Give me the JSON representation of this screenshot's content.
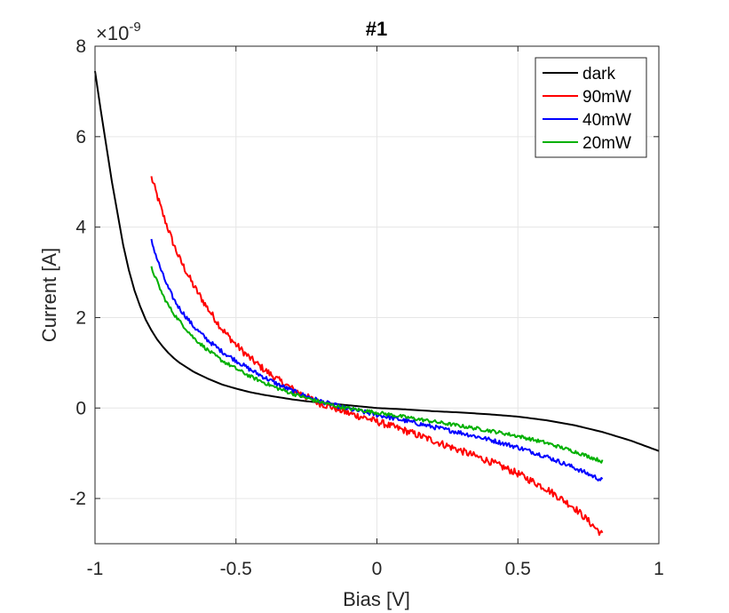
{
  "chart_data": {
    "type": "line",
    "title": "#1",
    "xlabel": "Bias [V]",
    "ylabel": "Current [A]",
    "y_exponent_label": {
      "base": "×10",
      "exponent": "-9"
    },
    "xlim": [
      -1,
      1
    ],
    "ylim": [
      -3,
      8
    ],
    "xticks": [
      -1,
      -0.5,
      0,
      0.5,
      1
    ],
    "xtick_labels": [
      "-1",
      "-0.5",
      "0",
      "0.5",
      "1"
    ],
    "yticks": [
      -2,
      0,
      2,
      4,
      6,
      8
    ],
    "ytick_labels": [
      "-2",
      "0",
      "2",
      "4",
      "6",
      "8"
    ],
    "grid": true,
    "legend_position": "top-right",
    "y_unit_scale": 1e-09,
    "series": [
      {
        "name": "dark",
        "color": "#000000",
        "noise": 0,
        "x": [
          -1.0,
          -0.98,
          -0.96,
          -0.94,
          -0.92,
          -0.9,
          -0.88,
          -0.86,
          -0.84,
          -0.82,
          -0.8,
          -0.78,
          -0.76,
          -0.74,
          -0.72,
          -0.7,
          -0.65,
          -0.6,
          -0.55,
          -0.5,
          -0.45,
          -0.4,
          -0.35,
          -0.3,
          -0.25,
          -0.2,
          -0.1,
          0.0,
          0.1,
          0.2,
          0.3,
          0.4,
          0.5,
          0.6,
          0.7,
          0.8,
          0.9,
          1.0
        ],
        "y": [
          7.45,
          6.6,
          5.8,
          5.0,
          4.3,
          3.6,
          3.05,
          2.6,
          2.25,
          1.95,
          1.72,
          1.52,
          1.36,
          1.22,
          1.1,
          1.0,
          0.8,
          0.65,
          0.52,
          0.43,
          0.35,
          0.29,
          0.24,
          0.19,
          0.15,
          0.12,
          0.06,
          0.0,
          -0.03,
          -0.07,
          -0.1,
          -0.14,
          -0.19,
          -0.27,
          -0.38,
          -0.53,
          -0.72,
          -0.95
        ]
      },
      {
        "name": "90mW",
        "color": "#ff0000",
        "noise": 0.08,
        "x": [
          -0.8,
          -0.78,
          -0.76,
          -0.74,
          -0.72,
          -0.7,
          -0.65,
          -0.6,
          -0.55,
          -0.5,
          -0.45,
          -0.4,
          -0.35,
          -0.3,
          -0.25,
          -0.2,
          -0.15,
          -0.1,
          -0.05,
          0.0,
          0.1,
          0.2,
          0.3,
          0.4,
          0.5,
          0.6,
          0.7,
          0.75,
          0.8
        ],
        "y": [
          5.1,
          4.7,
          4.3,
          3.95,
          3.6,
          3.3,
          2.7,
          2.2,
          1.75,
          1.4,
          1.1,
          0.85,
          0.62,
          0.42,
          0.25,
          0.1,
          0.0,
          -0.12,
          -0.2,
          -0.3,
          -0.5,
          -0.72,
          -0.95,
          -1.18,
          -1.45,
          -1.78,
          -2.2,
          -2.5,
          -2.8
        ]
      },
      {
        "name": "40mW",
        "color": "#0000ff",
        "noise": 0.05,
        "x": [
          -0.8,
          -0.78,
          -0.76,
          -0.74,
          -0.72,
          -0.7,
          -0.65,
          -0.6,
          -0.55,
          -0.5,
          -0.45,
          -0.4,
          -0.35,
          -0.3,
          -0.25,
          -0.2,
          -0.15,
          -0.1,
          0.0,
          0.1,
          0.2,
          0.3,
          0.4,
          0.5,
          0.6,
          0.7,
          0.8
        ],
        "y": [
          3.7,
          3.3,
          2.95,
          2.65,
          2.4,
          2.2,
          1.8,
          1.5,
          1.25,
          1.05,
          0.85,
          0.68,
          0.52,
          0.38,
          0.26,
          0.15,
          0.06,
          -0.02,
          -0.15,
          -0.28,
          -0.42,
          -0.55,
          -0.7,
          -0.87,
          -1.07,
          -1.32,
          -1.6
        ]
      },
      {
        "name": "20mW",
        "color": "#00b000",
        "noise": 0.04,
        "x": [
          -0.8,
          -0.78,
          -0.76,
          -0.74,
          -0.72,
          -0.7,
          -0.65,
          -0.6,
          -0.55,
          -0.5,
          -0.45,
          -0.4,
          -0.35,
          -0.3,
          -0.25,
          -0.2,
          -0.15,
          -0.1,
          0.0,
          0.1,
          0.2,
          0.3,
          0.4,
          0.5,
          0.6,
          0.7,
          0.8
        ],
        "y": [
          3.1,
          2.8,
          2.5,
          2.27,
          2.08,
          1.92,
          1.55,
          1.28,
          1.05,
          0.87,
          0.7,
          0.56,
          0.43,
          0.32,
          0.22,
          0.13,
          0.05,
          -0.01,
          -0.1,
          -0.2,
          -0.3,
          -0.4,
          -0.5,
          -0.62,
          -0.77,
          -0.96,
          -1.18
        ]
      }
    ]
  }
}
